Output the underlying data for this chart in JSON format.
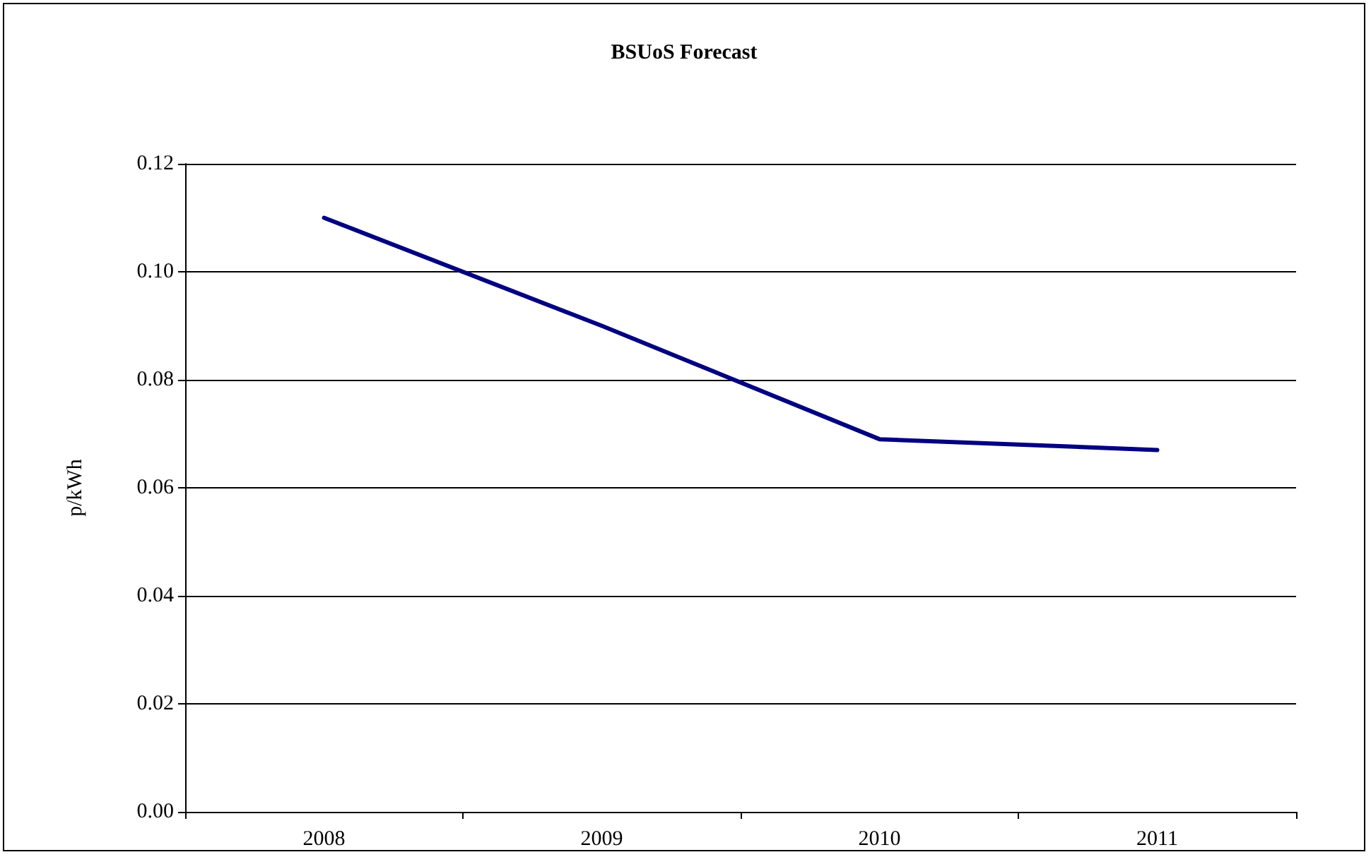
{
  "chart_data": {
    "type": "line",
    "title": "BSUoS Forecast",
    "ylabel": "p/kWh",
    "categories": [
      "2008",
      "2009",
      "2010",
      "2011"
    ],
    "series": [
      {
        "color": "#000080",
        "values": [
          0.11,
          0.09,
          0.069,
          0.067
        ]
      }
    ],
    "ylim": [
      0,
      0.12
    ],
    "yticks": [
      {
        "value": 0,
        "label": "0.00"
      },
      {
        "value": 0.02,
        "label": "0.02"
      },
      {
        "value": 0.04,
        "label": "0.04"
      },
      {
        "value": 0.06,
        "label": "0.06"
      },
      {
        "value": 0.08,
        "label": "0.08"
      },
      {
        "value": 0.1,
        "label": "0.10"
      },
      {
        "value": 0.12,
        "label": "0.12"
      }
    ],
    "grid": "y",
    "marker": "none",
    "line_style": "solid"
  }
}
